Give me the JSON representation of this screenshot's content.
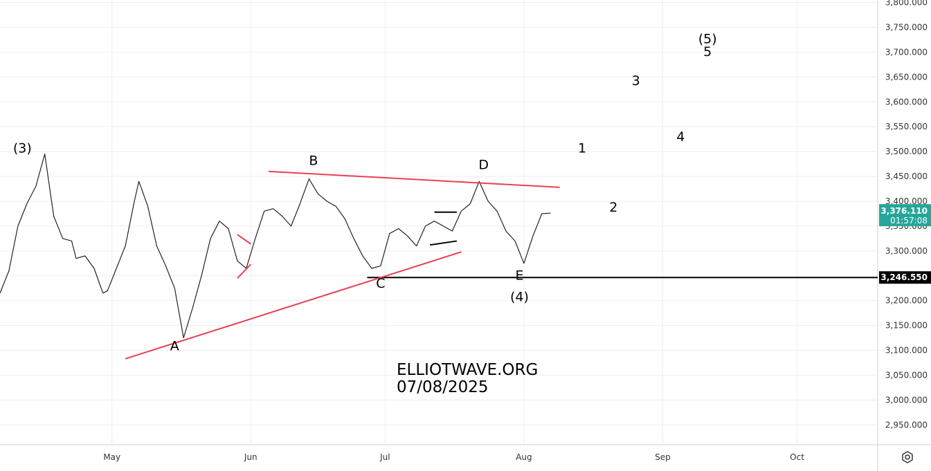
{
  "chart_data": {
    "type": "line",
    "title": "",
    "xlabel": "",
    "ylabel": "",
    "x_tick_labels": [
      "May",
      "Jun",
      "Jul",
      "Aug",
      "Sep",
      "Oct"
    ],
    "x_tick_dates": [
      "2025-05-01",
      "2025-06-01",
      "2025-07-01",
      "2025-08-01",
      "2025-09-01",
      "2025-10-01"
    ],
    "xlim": [
      "2025-04-06",
      "2025-10-19"
    ],
    "ylim": [
      2910,
      3805
    ],
    "y_ticks": [
      2950,
      3000,
      3050,
      3100,
      3150,
      3200,
      3250,
      3300,
      3350,
      3400,
      3450,
      3500,
      3550,
      3600,
      3650,
      3700,
      3750,
      3800
    ],
    "y_tick_labels": [
      "2,950.000",
      "3,000.000",
      "3,050.000",
      "3,100.000",
      "3,150.000",
      "3,200.000",
      "3,250.000",
      "3,300.000",
      "3,350.000",
      "3,400.000",
      "3,450.000",
      "3,500.000",
      "3,550.000",
      "3,600.000",
      "3,650.000",
      "3,700.000",
      "3,750.000",
      "3,800.000"
    ],
    "grid": true,
    "series": [
      {
        "color": "#222222",
        "x": [
          "2025-04-06",
          "2025-04-08",
          "2025-04-10",
          "2025-04-12",
          "2025-04-14",
          "2025-04-16",
          "2025-04-18",
          "2025-04-20",
          "2025-04-22",
          "2025-04-23",
          "2025-04-25",
          "2025-04-27",
          "2025-04-29",
          "2025-04-30",
          "2025-05-02",
          "2025-05-04",
          "2025-05-06",
          "2025-05-07",
          "2025-05-09",
          "2025-05-11",
          "2025-05-13",
          "2025-05-15",
          "2025-05-17",
          "2025-05-19",
          "2025-05-21",
          "2025-05-23",
          "2025-05-25",
          "2025-05-27",
          "2025-05-29",
          "2025-05-31",
          "2025-06-02",
          "2025-06-04",
          "2025-06-06",
          "2025-06-08",
          "2025-06-10",
          "2025-06-12",
          "2025-06-14",
          "2025-06-16",
          "2025-06-18",
          "2025-06-20",
          "2025-06-22",
          "2025-06-24",
          "2025-06-26",
          "2025-06-28",
          "2025-06-30",
          "2025-07-02",
          "2025-07-04",
          "2025-07-06",
          "2025-07-08",
          "2025-07-10",
          "2025-07-12",
          "2025-07-14",
          "2025-07-16",
          "2025-07-18",
          "2025-07-20",
          "2025-07-22",
          "2025-07-24",
          "2025-07-26",
          "2025-07-28",
          "2025-07-30",
          "2025-08-01",
          "2025-08-03",
          "2025-08-05",
          "2025-08-07"
        ],
        "values": [
          3215,
          3260,
          3350,
          3395,
          3430,
          3495,
          3370,
          3325,
          3320,
          3285,
          3290,
          3265,
          3215,
          3220,
          3265,
          3310,
          3400,
          3440,
          3390,
          3310,
          3270,
          3225,
          3125,
          3185,
          3250,
          3325,
          3360,
          3345,
          3280,
          3265,
          3325,
          3380,
          3385,
          3370,
          3350,
          3395,
          3445,
          3415,
          3400,
          3390,
          3365,
          3325,
          3290,
          3265,
          3270,
          3335,
          3345,
          3330,
          3310,
          3350,
          3360,
          3350,
          3340,
          3380,
          3395,
          3440,
          3400,
          3380,
          3340,
          3320,
          3275,
          3330,
          3375,
          3376
        ]
      }
    ],
    "annotations": [
      {
        "text": "(3)",
        "x": "2025-04-11",
        "y": 3498
      },
      {
        "text": "B",
        "x": "2025-06-15",
        "y": 3473
      },
      {
        "text": "D",
        "x": "2025-07-23",
        "y": 3465
      },
      {
        "text": "C",
        "x": "2025-06-30",
        "y": 3226
      },
      {
        "text": "E",
        "x": "2025-07-31",
        "y": 3242
      },
      {
        "text": "(4)",
        "x": "2025-07-31",
        "y": 3199
      },
      {
        "text": "A",
        "x": "2025-05-15",
        "y": 3100
      },
      {
        "text": "1",
        "x": "2025-08-14",
        "y": 3498
      },
      {
        "text": "2",
        "x": "2025-08-21",
        "y": 3379
      },
      {
        "text": "3",
        "x": "2025-08-26",
        "y": 3634
      },
      {
        "text": "4",
        "x": "2025-09-05",
        "y": 3521
      },
      {
        "text": "(5)",
        "x": "2025-09-11",
        "y": 3718
      },
      {
        "text": "5",
        "x": "2025-09-11",
        "y": 3692
      }
    ],
    "trendlines": [
      {
        "color": "#e84050",
        "x": [
          "2025-06-05",
          "2025-08-09"
        ],
        "y": [
          3460,
          3428
        ]
      },
      {
        "color": "#e84050",
        "x": [
          "2025-05-04",
          "2025-07-18"
        ],
        "y": [
          3083,
          3298
        ]
      },
      {
        "color": "#e84050",
        "x": [
          "2025-05-29",
          "2025-06-01"
        ],
        "y": [
          3333,
          3314
        ]
      },
      {
        "color": "#e84050",
        "x": [
          "2025-05-29",
          "2025-06-01"
        ],
        "y": [
          3245,
          3273
        ]
      }
    ],
    "hlines": [
      {
        "color": "#000000",
        "y": 3246.55,
        "x_start": "2025-06-27"
      }
    ],
    "black_segments": [
      {
        "x": [
          "2025-07-12",
          "2025-07-17"
        ],
        "y": [
          3378,
          3378
        ]
      },
      {
        "x": [
          "2025-07-11",
          "2025-07-17"
        ],
        "y": [
          3312,
          3320
        ]
      }
    ]
  },
  "watermark": {
    "line1": "ELLIOTWAVE.ORG",
    "line2": "07/08/2025"
  },
  "price_labels": {
    "last_price": "3,376.110",
    "countdown": "01:57:08",
    "last_price_value": 3376.11,
    "last_price_color": "#26a69a",
    "level_price": "3,246.550",
    "level_price_value": 3246.55,
    "level_color": "#000000"
  },
  "settings_icon": "gear-icon"
}
